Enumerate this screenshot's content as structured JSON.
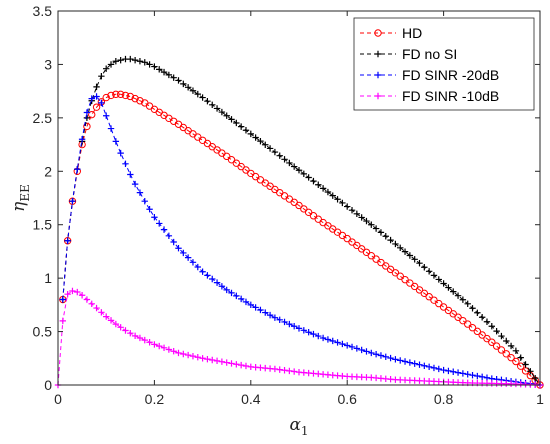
{
  "chart_data": {
    "type": "line",
    "xlabel": "α",
    "xlabel_sub": "1",
    "ylabel": "η",
    "ylabel_sub": "EE",
    "xlim": [
      0,
      1
    ],
    "ylim": [
      0,
      3.5
    ],
    "xticks": [
      "0",
      "0.2",
      "0.4",
      "0.6",
      "0.8",
      "1"
    ],
    "yticks": [
      "0",
      "0.5",
      "1",
      "1.5",
      "2",
      "2.5",
      "3",
      "3.5"
    ],
    "grid": false,
    "legend_position": "top-right",
    "series": [
      {
        "name": "HD",
        "color": "#ff0000",
        "marker": "circle",
        "line": "dashed",
        "points": [
          [
            0.01,
            0.8
          ],
          [
            0.02,
            1.35
          ],
          [
            0.03,
            1.72
          ],
          [
            0.04,
            2.0
          ],
          [
            0.05,
            2.25
          ],
          [
            0.06,
            2.42
          ],
          [
            0.07,
            2.53
          ],
          [
            0.08,
            2.6
          ],
          [
            0.09,
            2.65
          ],
          [
            0.1,
            2.69
          ],
          [
            0.11,
            2.71
          ],
          [
            0.12,
            2.72
          ],
          [
            0.13,
            2.72
          ],
          [
            0.14,
            2.71
          ],
          [
            0.15,
            2.7
          ],
          [
            0.16,
            2.68
          ],
          [
            0.18,
            2.64
          ],
          [
            0.2,
            2.58
          ],
          [
            0.25,
            2.44
          ],
          [
            0.3,
            2.29
          ],
          [
            0.35,
            2.14
          ],
          [
            0.4,
            1.98
          ],
          [
            0.45,
            1.83
          ],
          [
            0.5,
            1.68
          ],
          [
            0.55,
            1.52
          ],
          [
            0.6,
            1.37
          ],
          [
            0.65,
            1.21
          ],
          [
            0.7,
            1.05
          ],
          [
            0.75,
            0.89
          ],
          [
            0.8,
            0.73
          ],
          [
            0.85,
            0.57
          ],
          [
            0.9,
            0.4
          ],
          [
            0.95,
            0.22
          ],
          [
            1.0,
            0.0
          ]
        ]
      },
      {
        "name": "FD no SI",
        "color": "#000000",
        "marker": "plus",
        "line": "dashed",
        "points": [
          [
            0.01,
            0.8
          ],
          [
            0.02,
            1.35
          ],
          [
            0.03,
            1.72
          ],
          [
            0.04,
            2.02
          ],
          [
            0.05,
            2.28
          ],
          [
            0.06,
            2.5
          ],
          [
            0.07,
            2.66
          ],
          [
            0.08,
            2.79
          ],
          [
            0.09,
            2.89
          ],
          [
            0.1,
            2.96
          ],
          [
            0.11,
            3.0
          ],
          [
            0.12,
            3.03
          ],
          [
            0.13,
            3.04
          ],
          [
            0.14,
            3.05
          ],
          [
            0.15,
            3.05
          ],
          [
            0.16,
            3.04
          ],
          [
            0.18,
            3.02
          ],
          [
            0.2,
            2.98
          ],
          [
            0.25,
            2.85
          ],
          [
            0.3,
            2.69
          ],
          [
            0.35,
            2.52
          ],
          [
            0.4,
            2.35
          ],
          [
            0.45,
            2.18
          ],
          [
            0.5,
            2.01
          ],
          [
            0.55,
            1.84
          ],
          [
            0.6,
            1.67
          ],
          [
            0.65,
            1.5
          ],
          [
            0.7,
            1.32
          ],
          [
            0.75,
            1.14
          ],
          [
            0.8,
            0.95
          ],
          [
            0.85,
            0.76
          ],
          [
            0.9,
            0.55
          ],
          [
            0.95,
            0.32
          ],
          [
            1.0,
            0.0
          ]
        ]
      },
      {
        "name": "FD SINR -20dB",
        "color": "#0000ff",
        "marker": "plus",
        "line": "dashed",
        "points": [
          [
            0.01,
            0.8
          ],
          [
            0.02,
            1.35
          ],
          [
            0.03,
            1.72
          ],
          [
            0.04,
            2.02
          ],
          [
            0.05,
            2.3
          ],
          [
            0.06,
            2.55
          ],
          [
            0.07,
            2.68
          ],
          [
            0.08,
            2.7
          ],
          [
            0.09,
            2.64
          ],
          [
            0.1,
            2.52
          ],
          [
            0.11,
            2.4
          ],
          [
            0.12,
            2.28
          ],
          [
            0.13,
            2.17
          ],
          [
            0.14,
            2.07
          ],
          [
            0.15,
            1.97
          ],
          [
            0.16,
            1.88
          ],
          [
            0.18,
            1.72
          ],
          [
            0.2,
            1.57
          ],
          [
            0.25,
            1.28
          ],
          [
            0.3,
            1.06
          ],
          [
            0.35,
            0.89
          ],
          [
            0.4,
            0.75
          ],
          [
            0.45,
            0.63
          ],
          [
            0.5,
            0.53
          ],
          [
            0.55,
            0.44
          ],
          [
            0.6,
            0.37
          ],
          [
            0.65,
            0.3
          ],
          [
            0.7,
            0.24
          ],
          [
            0.75,
            0.19
          ],
          [
            0.8,
            0.14
          ],
          [
            0.85,
            0.1
          ],
          [
            0.9,
            0.06
          ],
          [
            0.95,
            0.03
          ],
          [
            1.0,
            0.0
          ]
        ]
      },
      {
        "name": "FD SINR -10dB",
        "color": "#ff00ff",
        "marker": "plus",
        "line": "dashed",
        "points": [
          [
            0.0,
            0.0
          ],
          [
            0.01,
            0.6
          ],
          [
            0.02,
            0.85
          ],
          [
            0.03,
            0.88
          ],
          [
            0.04,
            0.87
          ],
          [
            0.05,
            0.84
          ],
          [
            0.06,
            0.8
          ],
          [
            0.07,
            0.76
          ],
          [
            0.08,
            0.72
          ],
          [
            0.09,
            0.68
          ],
          [
            0.1,
            0.64
          ],
          [
            0.12,
            0.57
          ],
          [
            0.14,
            0.51
          ],
          [
            0.16,
            0.46
          ],
          [
            0.18,
            0.42
          ],
          [
            0.2,
            0.38
          ],
          [
            0.25,
            0.3
          ],
          [
            0.3,
            0.25
          ],
          [
            0.35,
            0.21
          ],
          [
            0.4,
            0.17
          ],
          [
            0.45,
            0.15
          ],
          [
            0.5,
            0.12
          ],
          [
            0.55,
            0.1
          ],
          [
            0.6,
            0.08
          ],
          [
            0.65,
            0.07
          ],
          [
            0.7,
            0.05
          ],
          [
            0.75,
            0.04
          ],
          [
            0.8,
            0.03
          ],
          [
            0.85,
            0.02
          ],
          [
            0.9,
            0.015
          ],
          [
            0.95,
            0.01
          ],
          [
            1.0,
            0.0
          ]
        ]
      }
    ]
  }
}
